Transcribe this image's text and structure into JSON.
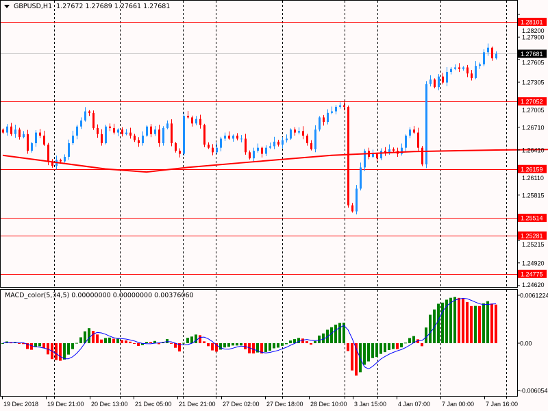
{
  "window": {
    "symbol_label": "GBPUSD,H1",
    "ohlc_label": "1.27672 1.27689 1.27661 1.27681"
  },
  "macd": {
    "label": "MACD_color(5,34,5) 0.00000000 0.00000000 0.00376060",
    "axis_labels": [
      "0.0061224",
      "0.00",
      "-0.006054"
    ],
    "axis_values": [
      0.0061224,
      0.0,
      -0.006054
    ],
    "colors": {
      "up": "#008000",
      "down": "#ff0000",
      "signal": "#0000ff"
    }
  },
  "price_axis": {
    "ticks": [
      "1.28200",
      "1.27900",
      "1.27605",
      "1.27305",
      "1.27005",
      "1.26710",
      "1.26410",
      "1.26110",
      "1.25815",
      "1.25215",
      "1.24920",
      "1.24620"
    ],
    "levels": [
      "1.28101",
      "1.27052",
      "1.26159",
      "1.25514",
      "1.25281",
      "1.24775"
    ],
    "current_price": "1.27681"
  },
  "time_axis": {
    "labels": [
      "19 Dec 2018",
      "19 Dec 21:00",
      "20 Dec 13:00",
      "21 Dec 05:00",
      "21 Dec 21:00",
      "27 Dec 02:00",
      "27 Dec 18:00",
      "28 Dec 10:00",
      "3 Jan 15:00",
      "4 Jan 07:00",
      "7 Jan 00:00",
      "7 Jan 16:00"
    ]
  },
  "colors": {
    "bull": "#1e90ff",
    "bear": "#ff0000",
    "level": "#ff0000",
    "ma": "#ff0000",
    "background": "#fffafa"
  },
  "chart_data": {
    "type": "candlestick",
    "title": "GBPUSD,H1",
    "ylim": [
      1.2462,
      1.282
    ],
    "closes": [
      1.2664,
      1.2672,
      1.2662,
      1.2668,
      1.2658,
      1.2662,
      1.264,
      1.265,
      1.2664,
      1.266,
      1.2648,
      1.2625,
      1.262,
      1.2628,
      1.2626,
      1.2632,
      1.265,
      1.266,
      1.2672,
      1.268,
      1.2692,
      1.269,
      1.267,
      1.2662,
      1.265,
      1.2672,
      1.267,
      1.2664,
      1.2668,
      1.2662,
      1.2664,
      1.266,
      1.2654,
      1.265,
      1.266,
      1.2672,
      1.2662,
      1.2668,
      1.265,
      1.267,
      1.2676,
      1.265,
      1.264,
      1.2636,
      1.2686,
      1.2684,
      1.2676,
      1.2682,
      1.2674,
      1.2648,
      1.2644,
      1.2638,
      1.2644,
      1.2656,
      1.266,
      1.2656,
      1.266,
      1.2656,
      1.2656,
      1.2638,
      1.263,
      1.264,
      1.2644,
      1.2636,
      1.2644,
      1.2646,
      1.2652,
      1.2648,
      1.2654,
      1.2656,
      1.2668,
      1.2664,
      1.2666,
      1.266,
      1.265,
      1.2642,
      1.2668,
      1.2684,
      1.2678,
      1.269,
      1.2692,
      1.2698,
      1.27,
      1.2698,
      1.2568,
      1.256,
      1.259,
      1.2618,
      1.264,
      1.2632,
      1.2636,
      1.263,
      1.264,
      1.2638,
      1.2642,
      1.264,
      1.2636,
      1.2644,
      1.266,
      1.2668,
      1.2664,
      1.2644,
      1.2622,
      1.2728,
      1.2734,
      1.2724,
      1.2738,
      1.273,
      1.2744,
      1.2748,
      1.275,
      1.2748,
      1.275,
      1.2742,
      1.2736,
      1.2752,
      1.2754,
      1.277,
      1.2776,
      1.2762,
      1.2768
    ],
    "moving_average": [
      [
        0,
        1.2634
      ],
      [
        25,
        1.2616
      ],
      [
        35,
        1.2612
      ],
      [
        45,
        1.2618
      ],
      [
        60,
        1.2625
      ],
      [
        80,
        1.2634
      ],
      [
        100,
        1.2639
      ],
      [
        120,
        1.2641
      ],
      [
        140,
        1.2642
      ],
      [
        160,
        1.2645
      ],
      [
        170,
        1.2652
      ],
      [
        180,
        1.2659
      ],
      [
        186,
        1.2663
      ]
    ]
  }
}
